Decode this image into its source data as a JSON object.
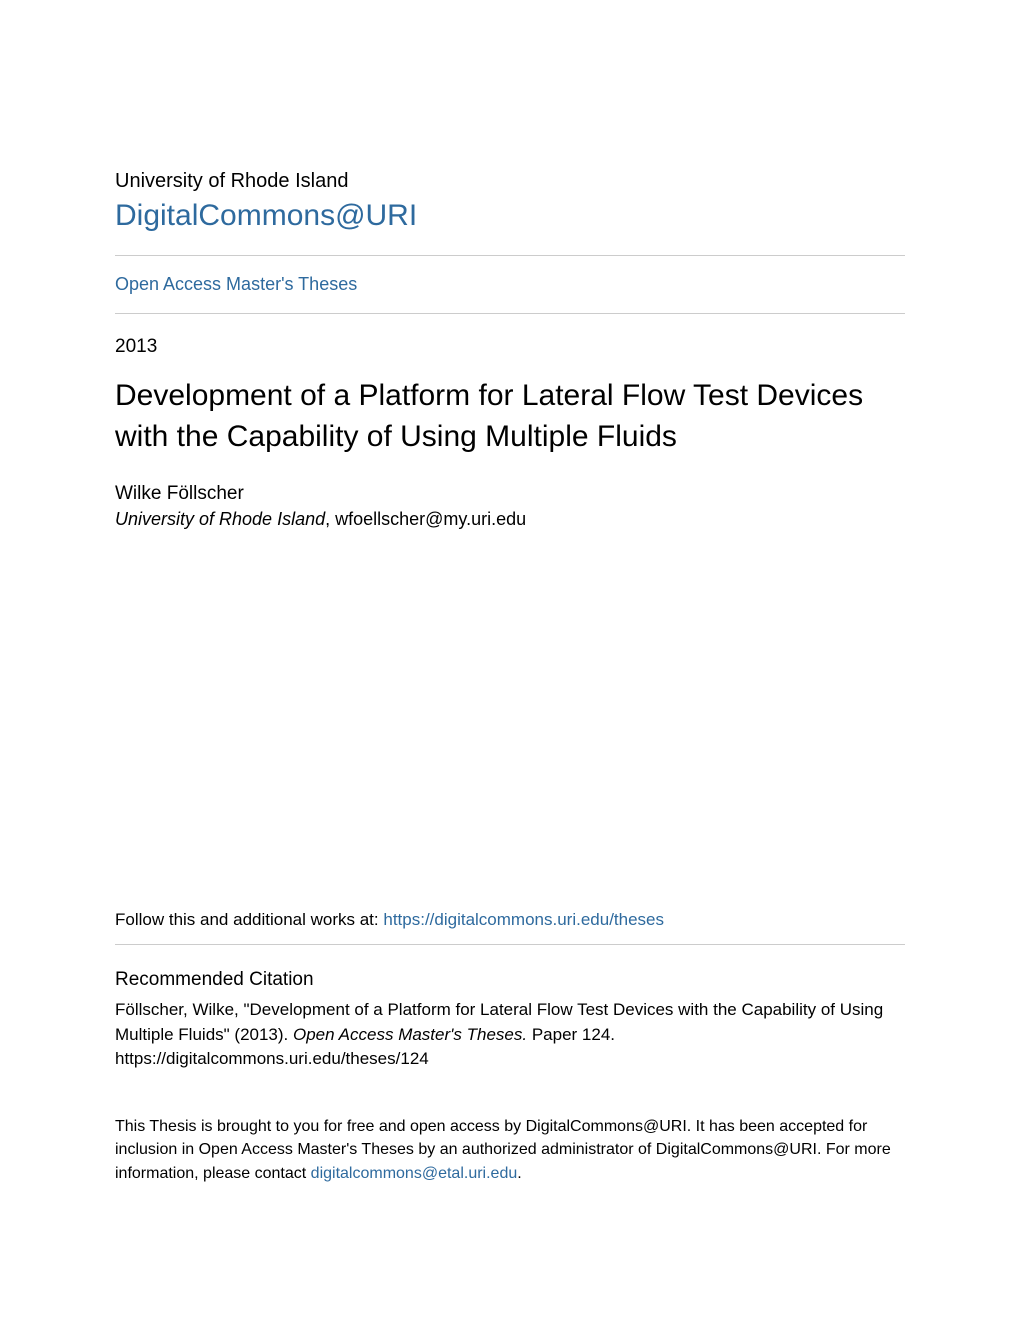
{
  "header": {
    "institution": "University of Rhode Island",
    "repository": "DigitalCommons@URI"
  },
  "collection": {
    "name": "Open Access Master's Theses"
  },
  "metadata": {
    "year": "2013",
    "title": "Development of a Platform for Lateral Flow Test Devices with the Capability of Using Multiple Fluids"
  },
  "author": {
    "name": "Wilke Föllscher",
    "affiliation": "University of Rhode Island",
    "email": "wfoellscher@my.uri.edu"
  },
  "follow": {
    "prefix": "Follow this and additional works at: ",
    "url": "https://digitalcommons.uri.edu/theses"
  },
  "citation": {
    "heading": "Recommended Citation",
    "text_part1": "Föllscher, Wilke, \"Development of a Platform for Lateral Flow Test Devices with the Capability of Using Multiple Fluids\" (2013). ",
    "text_italic": "Open Access Master's Theses.",
    "text_part2": " Paper 124.",
    "url": "https://digitalcommons.uri.edu/theses/124"
  },
  "footer": {
    "text_part1": "This Thesis is brought to you for free and open access by DigitalCommons@URI. It has been accepted for inclusion in Open Access Master's Theses by an authorized administrator of DigitalCommons@URI. For more information, please contact ",
    "contact_email": "digitalcommons@etal.uri.edu",
    "text_part2": "."
  },
  "colors": {
    "link": "#2e6a9e",
    "text": "#000000",
    "divider": "#cccccc",
    "background": "#ffffff"
  },
  "typography": {
    "title_fontsize": 30,
    "body_fontsize": 17,
    "heading_fontsize": 19
  }
}
